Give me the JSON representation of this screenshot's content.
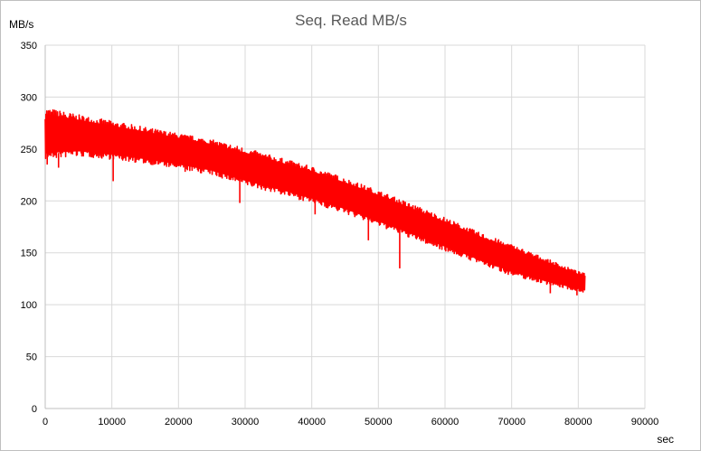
{
  "chart_data": {
    "type": "line",
    "title": "Seq. Read MB/s",
    "ylabel": "MB/s",
    "xlabel": "sec",
    "xlim": [
      0,
      90000
    ],
    "ylim": [
      0,
      350
    ],
    "xticks": [
      "0",
      "10000",
      "20000",
      "30000",
      "40000",
      "50000",
      "60000",
      "70000",
      "80000",
      "90000"
    ],
    "yticks": [
      "0",
      "50",
      "100",
      "150",
      "200",
      "250",
      "300",
      "350"
    ],
    "grid": true,
    "legend": "none",
    "series": [
      {
        "color": "#ff0000",
        "x": [
          0,
          5000,
          10000,
          15000,
          20000,
          25000,
          30000,
          35000,
          40000,
          45000,
          50000,
          55000,
          60000,
          65000,
          70000,
          75000,
          80000,
          81000
        ],
        "upper": [
          290,
          283,
          277,
          271,
          265,
          259,
          251,
          242,
          233,
          222,
          210,
          197,
          184,
          170,
          158,
          145,
          132,
          130
        ],
        "lower": [
          240,
          243,
          240,
          236,
          231,
          225,
          215,
          207,
          198,
          188,
          176,
          164,
          152,
          140,
          128,
          120,
          113,
          112
        ],
        "dips": [
          {
            "x": 300,
            "y": 235
          },
          {
            "x": 2000,
            "y": 232
          },
          {
            "x": 10200,
            "y": 219
          },
          {
            "x": 21000,
            "y": 228
          },
          {
            "x": 29200,
            "y": 198
          },
          {
            "x": 40500,
            "y": 187
          },
          {
            "x": 48500,
            "y": 162
          },
          {
            "x": 53200,
            "y": 135
          },
          {
            "x": 75800,
            "y": 111
          },
          {
            "x": 79800,
            "y": 109
          }
        ]
      }
    ]
  }
}
